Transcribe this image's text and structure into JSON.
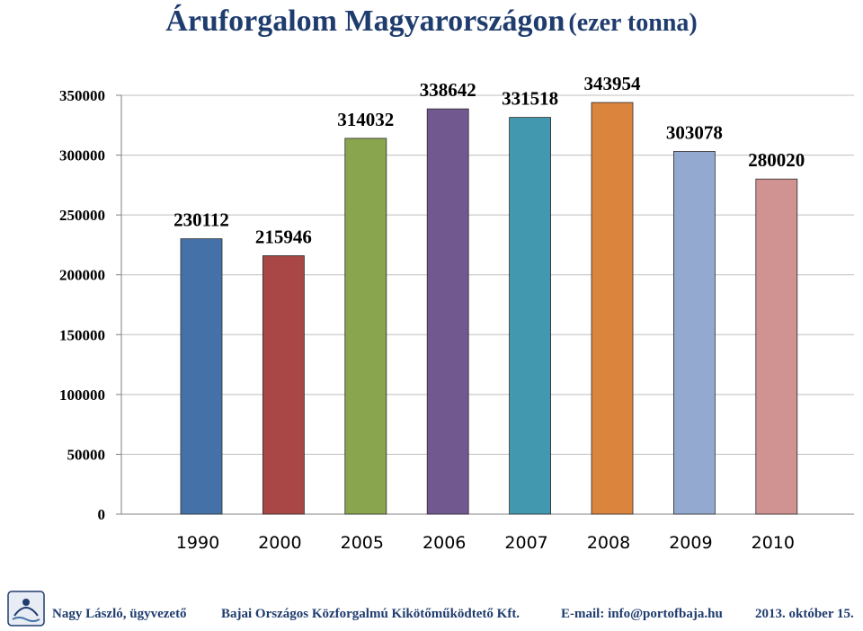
{
  "header": {
    "title_main": "Áruforgalom Magyarországon",
    "title_sub": "(ezer tonna)"
  },
  "chart_data": {
    "type": "bar",
    "title": "Áruforgalom Magyarországon (ezer tonna)",
    "xlabel": "",
    "ylabel": "",
    "categories": [
      "1990",
      "2000",
      "2005",
      "2006",
      "2007",
      "2008",
      "2009",
      "2010"
    ],
    "values": [
      230112,
      215946,
      314032,
      338642,
      331518,
      343954,
      303078,
      280020
    ],
    "value_labels": [
      "230112",
      "215946",
      "314032",
      "338642",
      "331518",
      "343954",
      "303078",
      "280020"
    ],
    "colors": [
      "#4472a8",
      "#a84745",
      "#89a54e",
      "#71588f",
      "#4198af",
      "#db843d",
      "#93a9cf",
      "#d19392"
    ],
    "ylim": [
      0,
      350000
    ],
    "yticks": [
      "0",
      "50000",
      "100000",
      "150000",
      "200000",
      "250000",
      "300000",
      "350000"
    ],
    "grid": true,
    "legend": "none"
  },
  "footer": {
    "author": "Nagy László, ügyvezető",
    "company": "Bajai Országos Közforgalmú Kikötőműködtető Kft.",
    "email": "E-mail: info@portofbaja.hu",
    "date": "2013. október 15."
  }
}
